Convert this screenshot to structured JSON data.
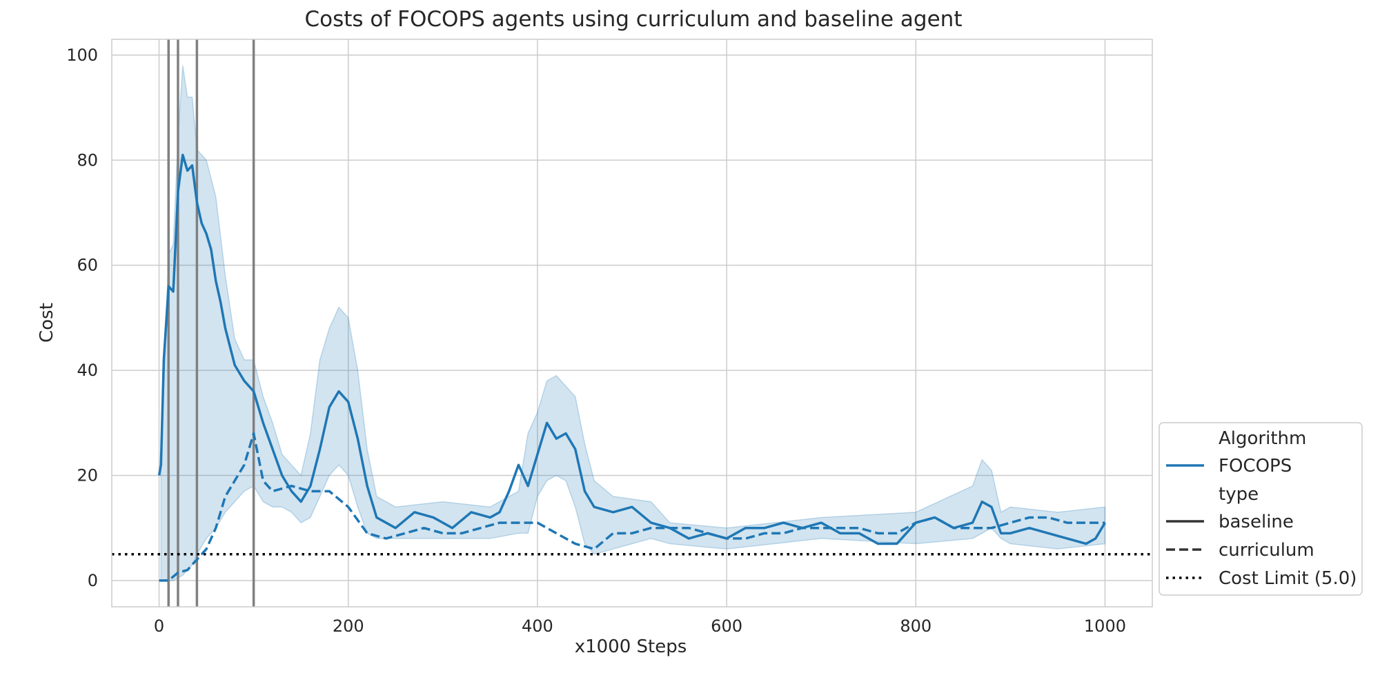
{
  "chart_data": {
    "type": "line",
    "title": "Costs of FOCOPS agents using curriculum and baseline agent",
    "xlabel": "x1000 Steps",
    "ylabel": "Cost",
    "xlim": [
      -50,
      1050
    ],
    "ylim": [
      -5,
      103
    ],
    "xticks": [
      0,
      200,
      400,
      600,
      800,
      1000
    ],
    "yticks": [
      0,
      20,
      40,
      60,
      80,
      100
    ],
    "grid": true,
    "legend_position": "lower-right, outside plot",
    "colors": {
      "series": "#1f77b4",
      "band": "#1f77b4",
      "vlines": "#808080",
      "limit": "#000000",
      "grid": "#cccccc"
    },
    "legend": {
      "group_algorithm": "Algorithm",
      "algorithm_entry": "FOCOPS",
      "group_type": "type",
      "type_baseline": "baseline",
      "type_curriculum": "curriculum",
      "cost_limit": "Cost Limit (5.0)"
    },
    "cost_limit": 5.0,
    "vertical_lines": [
      10,
      20,
      40,
      100
    ],
    "series": [
      {
        "name": "baseline",
        "style": "solid",
        "x": [
          0,
          2,
          5,
          10,
          15,
          20,
          25,
          30,
          35,
          40,
          45,
          50,
          55,
          60,
          65,
          70,
          80,
          90,
          100,
          110,
          120,
          130,
          140,
          150,
          160,
          170,
          180,
          190,
          200,
          210,
          220,
          230,
          250,
          270,
          290,
          310,
          330,
          350,
          360,
          370,
          380,
          390,
          400,
          410,
          420,
          430,
          440,
          450,
          460,
          480,
          500,
          520,
          540,
          560,
          580,
          600,
          620,
          640,
          660,
          680,
          700,
          720,
          740,
          760,
          780,
          800,
          820,
          840,
          860,
          870,
          880,
          890,
          900,
          920,
          940,
          960,
          980,
          990,
          1000
        ],
        "y": [
          20,
          22,
          42,
          56,
          55,
          74,
          81,
          78,
          79,
          72,
          68,
          66,
          63,
          57,
          53,
          48,
          41,
          38,
          36,
          30,
          25,
          20,
          17,
          15,
          18,
          25,
          33,
          36,
          34,
          27,
          18,
          12,
          10,
          13,
          12,
          10,
          13,
          12,
          13,
          17,
          22,
          18,
          24,
          30,
          27,
          28,
          25,
          17,
          14,
          13,
          14,
          11,
          10,
          8,
          9,
          8,
          10,
          10,
          11,
          10,
          11,
          9,
          9,
          7,
          7,
          11,
          12,
          10,
          11,
          15,
          14,
          9,
          9,
          10,
          9,
          8,
          7,
          8,
          11
        ]
      },
      {
        "name": "curriculum",
        "style": "dashed",
        "x": [
          0,
          10,
          20,
          30,
          40,
          50,
          60,
          70,
          80,
          90,
          100,
          110,
          120,
          140,
          160,
          180,
          200,
          220,
          240,
          260,
          280,
          300,
          320,
          340,
          360,
          380,
          400,
          420,
          440,
          460,
          480,
          500,
          520,
          540,
          560,
          580,
          600,
          620,
          640,
          660,
          680,
          700,
          720,
          740,
          760,
          780,
          800,
          820,
          840,
          860,
          880,
          900,
          920,
          940,
          960,
          980,
          1000
        ],
        "y": [
          0,
          0,
          1.5,
          2,
          4,
          6,
          10,
          16,
          19,
          22,
          28,
          19,
          17,
          18,
          17,
          17,
          14,
          9,
          8,
          9,
          10,
          9,
          9,
          10,
          11,
          11,
          11,
          9,
          7,
          6,
          9,
          9,
          10,
          10,
          10,
          9,
          8,
          8,
          9,
          9,
          10,
          10,
          10,
          10,
          9,
          9,
          11,
          12,
          10,
          10,
          10,
          11,
          12,
          12,
          11,
          11,
          11
        ]
      }
    ],
    "band": {
      "x": [
        2,
        10,
        15,
        20,
        25,
        30,
        35,
        40,
        50,
        60,
        70,
        80,
        90,
        100,
        110,
        120,
        130,
        140,
        150,
        160,
        170,
        180,
        190,
        200,
        210,
        220,
        230,
        250,
        300,
        350,
        380,
        390,
        400,
        410,
        420,
        430,
        440,
        450,
        460,
        480,
        520,
        540,
        600,
        700,
        800,
        860,
        870,
        880,
        890,
        900,
        950,
        1000
      ],
      "upper": [
        22,
        62,
        64,
        84,
        98,
        92,
        92,
        82,
        80,
        73,
        58,
        46,
        42,
        42,
        35,
        30,
        24,
        22,
        20,
        28,
        42,
        48,
        52,
        50,
        40,
        25,
        16,
        14,
        15,
        14,
        17,
        28,
        32,
        38,
        39,
        37,
        35,
        26,
        19,
        16,
        15,
        11,
        10,
        12,
        13,
        18,
        23,
        21,
        13,
        14,
        13,
        14
      ],
      "lower": [
        0,
        0,
        0,
        0.5,
        1,
        2,
        3,
        5,
        8,
        10,
        13,
        15,
        17,
        18,
        15,
        14,
        14,
        13,
        11,
        12,
        16,
        20,
        22,
        20,
        14,
        9,
        8,
        8,
        8,
        8,
        9,
        9,
        16,
        19,
        20,
        19,
        14,
        7,
        5,
        6,
        8,
        7,
        6,
        8,
        7,
        8,
        9,
        10,
        8,
        7,
        6,
        7
      ]
    }
  }
}
